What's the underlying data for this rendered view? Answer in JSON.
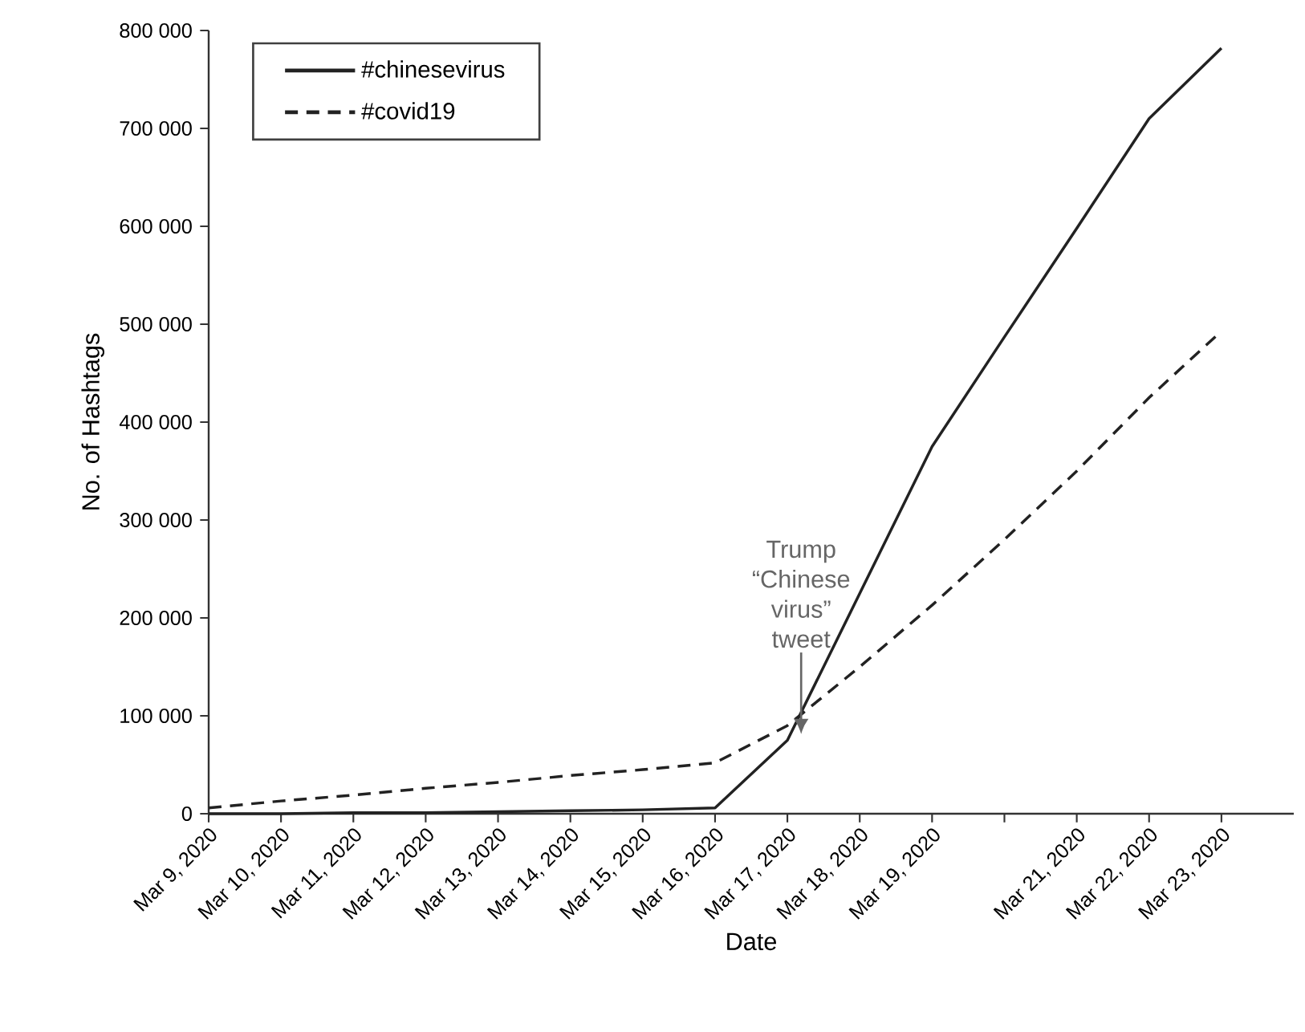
{
  "chart_data": {
    "type": "line",
    "xlabel": "Date",
    "ylabel": "No. of Hashtags",
    "x": [
      "2020-03-09",
      "2020-03-10",
      "2020-03-11",
      "2020-03-12",
      "2020-03-13",
      "2020-03-14",
      "2020-03-15",
      "2020-03-16",
      "2020-03-17",
      "2020-03-18",
      "2020-03-19",
      "2020-03-20",
      "2020-03-21",
      "2020-03-22",
      "2020-03-23"
    ],
    "series": [
      {
        "name": "#chinesevirus",
        "color": "#222222",
        "line_style": "solid",
        "values": [
          0,
          0,
          1000,
          1000,
          2000,
          3000,
          4000,
          6000,
          75000,
          225000,
          375000,
          487000,
          598000,
          710000,
          782000
        ]
      },
      {
        "name": "#covid19",
        "color": "#222222",
        "line_style": "dashed",
        "values": [
          6000,
          13000,
          19000,
          26000,
          32000,
          39000,
          45000,
          52000,
          90000,
          150000,
          213000,
          280000,
          350000,
          425000,
          493000
        ]
      }
    ],
    "xlim": [
      "2020-03-09",
      "2020-03-24"
    ],
    "xticks": [
      {
        "value": "2020-03-09",
        "label": "Mar 9, 2020"
      },
      {
        "value": "2020-03-10",
        "label": "Mar 10, 2020"
      },
      {
        "value": "2020-03-11",
        "label": "Mar 11, 2020"
      },
      {
        "value": "2020-03-12",
        "label": "Mar 12, 2020"
      },
      {
        "value": "2020-03-13",
        "label": "Mar 13, 2020"
      },
      {
        "value": "2020-03-14",
        "label": "Mar 14, 2020"
      },
      {
        "value": "2020-03-15",
        "label": "Mar 15, 2020"
      },
      {
        "value": "2020-03-16",
        "label": "Mar 16, 2020"
      },
      {
        "value": "2020-03-17",
        "label": "Mar 17, 2020"
      },
      {
        "value": "2020-03-18",
        "label": "Mar 18, 2020"
      },
      {
        "value": "2020-03-19",
        "label": "Mar 19, 2020"
      },
      {
        "value": "2020-03-20",
        "label": null
      },
      {
        "value": "2020-03-21",
        "label": "Mar 21, 2020"
      },
      {
        "value": "2020-03-22",
        "label": "Mar 22, 2020"
      },
      {
        "value": "2020-03-23",
        "label": "Mar 23, 2020"
      }
    ],
    "ylim": [
      0,
      800000
    ],
    "yticks": [
      0,
      {
        "value": 100000,
        "label": "100 000"
      },
      {
        "value": 200000,
        "label": "200 000"
      },
      {
        "value": 300000,
        "label": "300 000"
      },
      {
        "value": 400000,
        "label": "400 000"
      },
      {
        "value": 500000,
        "label": "500 000"
      },
      {
        "value": 600000,
        "label": "600 000"
      },
      {
        "value": 700000,
        "label": "700 000"
      },
      {
        "value": 800000,
        "label": "800 000"
      }
    ],
    "annotations": [
      "Trump “Chinese virus” tweet"
    ],
    "legend": "top left",
    "grid": false,
    "marker": "none"
  }
}
